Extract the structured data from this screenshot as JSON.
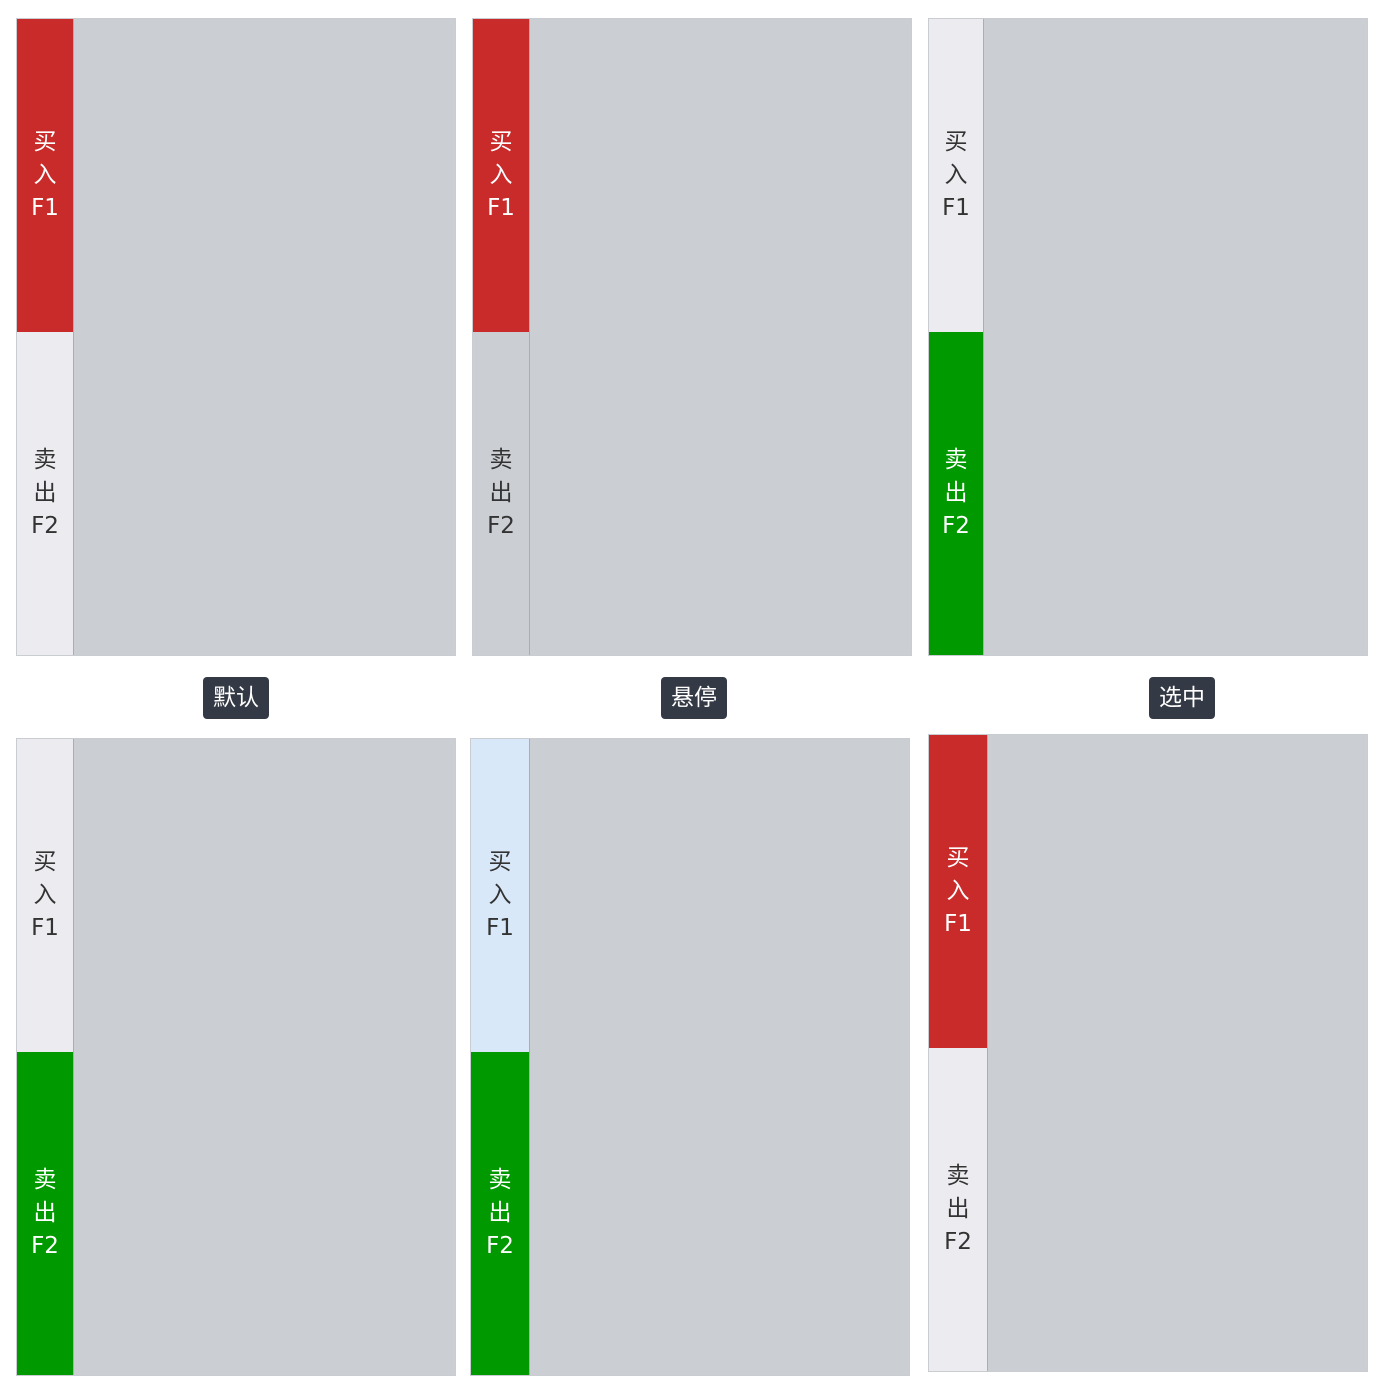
{
  "tab_text": {
    "buy": [
      "买",
      "入",
      "F1"
    ],
    "sell": [
      "卖",
      "出",
      "F2"
    ]
  },
  "state_labels": {
    "default": "默认",
    "hover": "悬停",
    "selected": "选中"
  },
  "colors": {
    "buy_active": "#c92a2a",
    "sell_active": "#009900",
    "inactive_tab": "#ececf0",
    "hover_tab": "#d8e8f8",
    "content": "#cbcfd4",
    "label_bg": "#343a45"
  },
  "panels": [
    {
      "id": "default-buy-selected",
      "buy_state": "active",
      "sell_state": "inactive"
    },
    {
      "id": "hover-buy-selected",
      "buy_state": "active",
      "sell_state": "hover"
    },
    {
      "id": "selected-sell-active",
      "buy_state": "inactive",
      "sell_state": "active"
    },
    {
      "id": "default-sell-selected",
      "buy_state": "inactive",
      "sell_state": "active"
    },
    {
      "id": "hover-sell-selected",
      "buy_state": "hover",
      "sell_state": "active"
    },
    {
      "id": "selected-buy-active",
      "buy_state": "active",
      "sell_state": "inactive"
    }
  ]
}
